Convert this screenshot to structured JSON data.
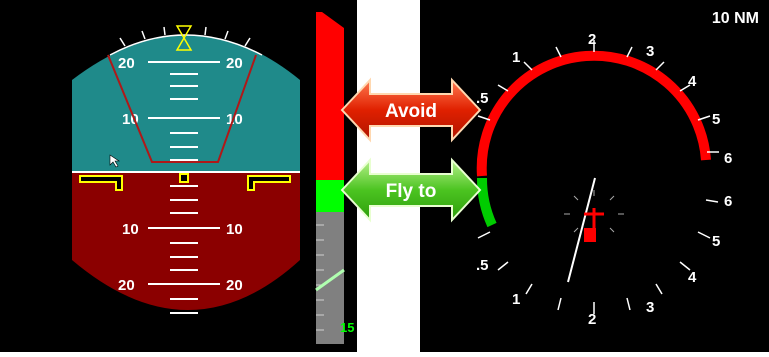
{
  "attitude": {
    "pitch_labels_top": {
      "upper_left": "20",
      "upper_right": "20",
      "mid_left": "10",
      "mid_right": "10"
    },
    "pitch_labels_bottom": {
      "mid_left": "10",
      "mid_right": "10",
      "lower_left": "20",
      "lower_right": "20"
    },
    "sky_color": "#1f8a8a",
    "ground_color": "#8b0000"
  },
  "vertical_tape": {
    "avoid_color": "#ff0000",
    "fly_to_color": "#00ff00",
    "bottom_value": "15"
  },
  "arrows": {
    "avoid_label": "Avoid",
    "fly_to_label": "Fly to"
  },
  "compass": {
    "range_label": "10 NM",
    "upper_scale": [
      ".5",
      "1",
      "2",
      "3",
      "4",
      "5",
      "6"
    ],
    "lower_scale": [
      "6",
      "5",
      "4",
      "3",
      "2",
      "1",
      ".5"
    ],
    "avoid_arc_color": "#ff0000",
    "fly_to_arc_color": "#00cc00"
  }
}
